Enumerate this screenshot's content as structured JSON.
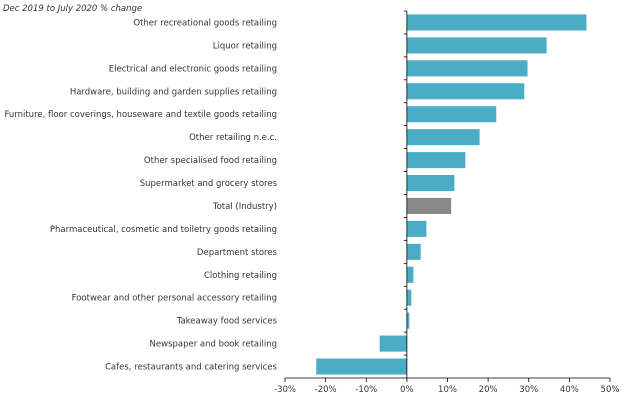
{
  "chart_data": {
    "type": "bar",
    "orientation": "horizontal",
    "subtitle": "Dec 2019 to July 2020 % change",
    "title": "",
    "xlabel": "",
    "ylabel": "",
    "xlim": [
      -30,
      50
    ],
    "x_ticks": [
      -30,
      -20,
      -10,
      0,
      10,
      20,
      30,
      40,
      50
    ],
    "x_tick_labels": [
      "-30%",
      "-20%",
      "-10%",
      "0%",
      "10%",
      "20%",
      "30%",
      "40%",
      "50%"
    ],
    "grid": false,
    "legend": "none",
    "colors": {
      "bar": "#4bacc6",
      "highlight": "#898989",
      "axis": "#000000",
      "text": "#333333"
    },
    "categories": [
      "Other recreational goods retailing",
      "Liquor retailing",
      "Electrical and electronic goods retailing",
      "Hardware, building and garden supplies retailing",
      "Furniture, floor coverings, houseware and textile goods retailing",
      "Other retailing n.e.c.",
      "Other specialised food retailing",
      "Supermarket and grocery stores",
      "Total (Industry)",
      "Pharmaceutical, cosmetic and toiletry goods retailing",
      "Department stores",
      "Clothing retailing",
      "Footwear and other personal accessory retailing",
      "Takeaway food services",
      "Newspaper and book retailing",
      "Cafes, restaurants and catering services"
    ],
    "values": [
      44.2,
      34.4,
      29.7,
      28.9,
      22.0,
      17.9,
      14.4,
      11.7,
      10.9,
      4.8,
      3.4,
      1.6,
      1.1,
      0.6,
      -6.7,
      -22.3
    ],
    "highlighted": [
      "Total (Industry)"
    ]
  }
}
